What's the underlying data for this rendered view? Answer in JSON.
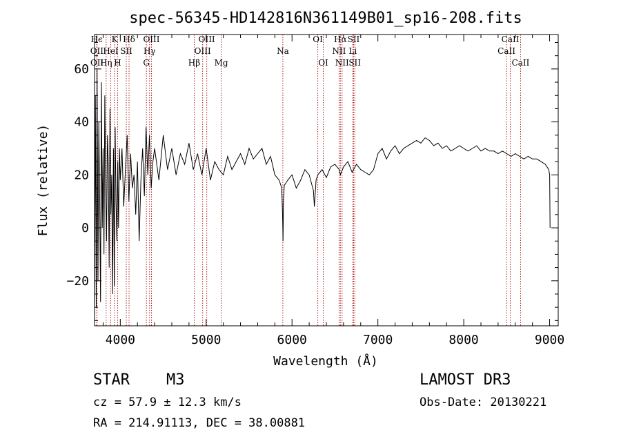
{
  "chart_data": {
    "type": "line",
    "title": "spec-56345-HD142816N361149B01_sp16-208.fits",
    "xlabel": "Wavelength (Å)",
    "ylabel": "Flux (relative)",
    "xlim": [
      3700,
      9100
    ],
    "ylim": [
      -37,
      73
    ],
    "x_ticks": [
      4000,
      5000,
      6000,
      7000,
      8000,
      9000
    ],
    "x_tick_labels": [
      "4000",
      "5000",
      "6000",
      "7000",
      "8000",
      "9000"
    ],
    "y_ticks": [
      -20,
      0,
      20,
      40,
      60
    ],
    "y_tick_labels": [
      "−20",
      "0",
      "20",
      "40",
      "60"
    ],
    "series": [
      {
        "name": "spectrum",
        "x": [
          3700,
          3710,
          3720,
          3730,
          3740,
          3750,
          3760,
          3770,
          3780,
          3790,
          3800,
          3810,
          3820,
          3830,
          3840,
          3850,
          3860,
          3870,
          3880,
          3890,
          3900,
          3910,
          3920,
          3930,
          3940,
          3950,
          3960,
          3970,
          3980,
          3990,
          4000,
          4020,
          4040,
          4060,
          4080,
          4100,
          4120,
          4140,
          4160,
          4180,
          4200,
          4220,
          4240,
          4260,
          4280,
          4300,
          4320,
          4340,
          4360,
          4380,
          4400,
          4450,
          4500,
          4550,
          4600,
          4650,
          4700,
          4750,
          4800,
          4850,
          4900,
          4950,
          5000,
          5050,
          5100,
          5150,
          5200,
          5250,
          5300,
          5350,
          5400,
          5450,
          5500,
          5550,
          5600,
          5650,
          5700,
          5750,
          5800,
          5850,
          5880,
          5890,
          5895,
          5900,
          5910,
          5950,
          6000,
          6050,
          6100,
          6150,
          6200,
          6250,
          6260,
          6280,
          6300,
          6350,
          6400,
          6450,
          6500,
          6550,
          6563,
          6600,
          6650,
          6700,
          6750,
          6800,
          6850,
          6900,
          6950,
          7000,
          7050,
          7100,
          7150,
          7200,
          7250,
          7300,
          7350,
          7400,
          7450,
          7500,
          7550,
          7600,
          7650,
          7700,
          7750,
          7800,
          7850,
          7900,
          7950,
          8000,
          8050,
          8100,
          8150,
          8200,
          8250,
          8300,
          8350,
          8400,
          8450,
          8500,
          8550,
          8600,
          8650,
          8700,
          8750,
          8800,
          8850,
          8900,
          8950,
          8990,
          9000,
          9005
        ],
        "y": [
          -37,
          50,
          -30,
          60,
          -20,
          40,
          10,
          -28,
          55,
          0,
          30,
          -10,
          50,
          15,
          -5,
          35,
          25,
          -15,
          45,
          5,
          20,
          -25,
          30,
          -22,
          38,
          10,
          -5,
          25,
          0,
          30,
          18,
          30,
          8,
          22,
          35,
          10,
          28,
          15,
          20,
          5,
          25,
          -5,
          18,
          30,
          12,
          38,
          20,
          35,
          15,
          25,
          30,
          18,
          35,
          22,
          30,
          20,
          28,
          24,
          32,
          22,
          28,
          20,
          30,
          18,
          25,
          22,
          20,
          27,
          22,
          25,
          28,
          24,
          30,
          26,
          28,
          30,
          24,
          27,
          20,
          18,
          15,
          5,
          -5,
          10,
          16,
          18,
          20,
          15,
          18,
          22,
          20,
          14,
          8,
          18,
          20,
          22,
          19,
          23,
          24,
          22,
          20,
          23,
          25,
          21,
          24,
          22,
          21,
          20,
          22,
          28,
          30,
          26,
          29,
          31,
          28,
          30,
          31,
          32,
          33,
          32,
          34,
          33,
          31,
          32,
          30,
          31,
          29,
          30,
          31,
          30,
          29,
          30,
          31,
          29,
          30,
          29,
          29,
          28,
          29,
          28,
          27,
          28,
          27,
          26,
          27,
          26,
          26,
          25,
          24,
          22,
          20,
          0
        ]
      }
    ],
    "line_markers": [
      {
        "name": "H-epsilon",
        "wavelength": 3726,
        "label": "Hϵ",
        "row": 1
      },
      {
        "name": "OII-left",
        "wavelength": 3727,
        "label": "OII",
        "row": 2
      },
      {
        "name": "OII-third",
        "wavelength": 3729,
        "label": "OII",
        "row": 3
      },
      {
        "name": "H-eta",
        "wavelength": 3835,
        "label": "Hη",
        "row": 3
      },
      {
        "name": "HeI",
        "wavelength": 3889,
        "label": "HeI",
        "row": 2
      },
      {
        "name": "K",
        "wavelength": 3934,
        "label": "K",
        "row": 1
      },
      {
        "name": "H",
        "wavelength": 3969,
        "label": "H",
        "row": 3
      },
      {
        "name": "SII-blue",
        "wavelength": 4070,
        "label": "SII",
        "row": 2
      },
      {
        "name": "H-delta",
        "wavelength": 4102,
        "label": "Hδ",
        "row": 1
      },
      {
        "name": "G",
        "wavelength": 4304,
        "label": "G",
        "row": 3
      },
      {
        "name": "H-gamma",
        "wavelength": 4341,
        "label": "Hγ",
        "row": 2
      },
      {
        "name": "OIII-blue",
        "wavelength": 4363,
        "label": "OIII",
        "row": 1
      },
      {
        "name": "H-beta",
        "wavelength": 4861,
        "label": "Hβ",
        "row": 3
      },
      {
        "name": "OIII-4959",
        "wavelength": 4959,
        "label": "OIII",
        "row": 2
      },
      {
        "name": "OIII-5007",
        "wavelength": 5007,
        "label": "OIII",
        "row": 1
      },
      {
        "name": "Mg",
        "wavelength": 5175,
        "label": "Mg",
        "row": 3
      },
      {
        "name": "Na",
        "wavelength": 5893,
        "label": "Na",
        "row": 2
      },
      {
        "name": "OI-6300",
        "wavelength": 6300,
        "label": "OI",
        "row": 1
      },
      {
        "name": "OI-6364",
        "wavelength": 6364,
        "label": "OI",
        "row": 3
      },
      {
        "name": "NII-6548",
        "wavelength": 6548,
        "label": "NII",
        "row": 2
      },
      {
        "name": "H-alpha",
        "wavelength": 6563,
        "label": "Hα",
        "row": 1
      },
      {
        "name": "NII-6583",
        "wavelength": 6583,
        "label": "NII",
        "row": 3
      },
      {
        "name": "Li",
        "wavelength": 6708,
        "label": "Li",
        "row": 2
      },
      {
        "name": "SII-6717",
        "wavelength": 6717,
        "label": "SII",
        "row": 1
      },
      {
        "name": "SII-6731",
        "wavelength": 6731,
        "label": "SII",
        "row": 3
      },
      {
        "name": "CaII-8498",
        "wavelength": 8498,
        "label": "CaII",
        "row": 2
      },
      {
        "name": "CaII-8542",
        "wavelength": 8542,
        "label": "CaII",
        "row": 1
      },
      {
        "name": "CaII-8662",
        "wavelength": 8662,
        "label": "CaII",
        "row": 3
      }
    ]
  },
  "info": {
    "object_class": "STAR",
    "subclass": "M3",
    "survey": "LAMOST DR3",
    "redshift_line": "cz = 57.9 ± 12.3 km/s",
    "obs_date_line": "Obs-Date: 20130221",
    "coords_line": "RA = 214.91113, DEC =  38.00881"
  },
  "colors": {
    "spectrum": "#000000",
    "marker_line": "#b22222",
    "axes": "#000000"
  }
}
